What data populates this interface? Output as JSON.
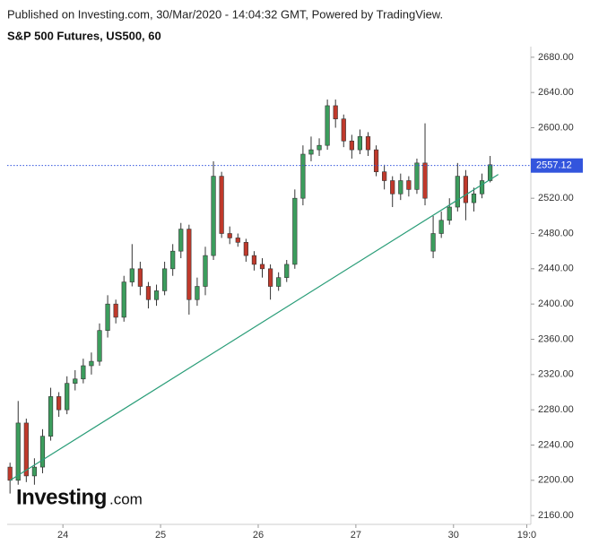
{
  "header": {
    "published": "Published on Investing.com, 30/Mar/2020 - 14:04:32 GMT, Powered by TradingView.",
    "logo": "Investing",
    "logo_suffix": ".com"
  },
  "chart_data": {
    "type": "candlestick",
    "title": "S&P 500 Futures, US500, 60",
    "x": [
      -13,
      -11,
      -9,
      -7,
      -5,
      -3,
      -1,
      1,
      3,
      5,
      7,
      9,
      11,
      13,
      15,
      17,
      19,
      21,
      23,
      25,
      27,
      29,
      31,
      33,
      35,
      37,
      39,
      41,
      43,
      45,
      47,
      49,
      51,
      53,
      55,
      57,
      59,
      61,
      63,
      65,
      67,
      69,
      71,
      73,
      75,
      77,
      79,
      81,
      83,
      85,
      87,
      89,
      91,
      93,
      95,
      97,
      99,
      101,
      103,
      105
    ],
    "open": [
      2215,
      2200,
      2265,
      2205,
      2215,
      2250,
      2295,
      2280,
      2310,
      2315,
      2330,
      2335,
      2370,
      2400,
      2385,
      2425,
      2440,
      2420,
      2405,
      2415,
      2440,
      2460,
      2485,
      2405,
      2420,
      2455,
      2545,
      2480,
      2475,
      2470,
      2455,
      2445,
      2440,
      2420,
      2430,
      2445,
      2520,
      2570,
      2575,
      2580,
      2625,
      2610,
      2585,
      2575,
      2590,
      2575,
      2550,
      2540,
      2525,
      2540,
      2530,
      2560,
      2460,
      2480,
      2495,
      2510,
      2545,
      2515,
      2525,
      2540
    ],
    "high": [
      2220,
      2290,
      2270,
      2225,
      2258,
      2305,
      2300,
      2318,
      2325,
      2338,
      2345,
      2378,
      2410,
      2405,
      2432,
      2468,
      2448,
      2425,
      2422,
      2448,
      2468,
      2492,
      2490,
      2430,
      2465,
      2562,
      2550,
      2488,
      2480,
      2474,
      2460,
      2452,
      2445,
      2436,
      2450,
      2530,
      2580,
      2590,
      2588,
      2632,
      2632,
      2615,
      2592,
      2598,
      2595,
      2580,
      2558,
      2545,
      2548,
      2545,
      2565,
      2605,
      2500,
      2505,
      2520,
      2560,
      2552,
      2532,
      2548,
      2568
    ],
    "low": [
      2185,
      2195,
      2198,
      2195,
      2208,
      2245,
      2272,
      2275,
      2302,
      2310,
      2320,
      2330,
      2362,
      2378,
      2380,
      2420,
      2410,
      2395,
      2398,
      2410,
      2432,
      2452,
      2388,
      2398,
      2410,
      2450,
      2475,
      2468,
      2465,
      2448,
      2438,
      2430,
      2405,
      2415,
      2425,
      2440,
      2512,
      2562,
      2568,
      2575,
      2600,
      2578,
      2565,
      2570,
      2568,
      2545,
      2530,
      2510,
      2518,
      2522,
      2525,
      2512,
      2452,
      2475,
      2490,
      2505,
      2495,
      2505,
      2520,
      2538
    ],
    "close": [
      2200,
      2265,
      2205,
      2215,
      2250,
      2295,
      2280,
      2310,
      2315,
      2330,
      2335,
      2370,
      2400,
      2385,
      2425,
      2440,
      2420,
      2405,
      2415,
      2440,
      2460,
      2485,
      2405,
      2420,
      2455,
      2545,
      2480,
      2475,
      2470,
      2455,
      2445,
      2440,
      2420,
      2430,
      2445,
      2520,
      2570,
      2575,
      2580,
      2625,
      2610,
      2585,
      2575,
      2590,
      2575,
      2550,
      2540,
      2525,
      2540,
      2530,
      2560,
      2520,
      2480,
      2495,
      2510,
      2545,
      2515,
      2525,
      2540,
      2558
    ],
    "up_color": "#3c9d5d",
    "down_color": "#c0392b",
    "trendline": {
      "x": [
        -13,
        107
      ],
      "y": [
        2200,
        2547
      ],
      "color": "#2a9d78"
    },
    "last_price": {
      "value": 2557.12,
      "label": "2557.12",
      "color": "#3355dd"
    },
    "xlim": [
      -13.7,
      115
    ],
    "xticks": [
      {
        "value": 0,
        "label": "24"
      },
      {
        "value": 24,
        "label": "25"
      },
      {
        "value": 48,
        "label": "26"
      },
      {
        "value": 72,
        "label": "27"
      },
      {
        "value": 96,
        "label": "30"
      },
      {
        "value": 114,
        "label": "19:0"
      }
    ],
    "ylim": [
      2150,
      2689
    ],
    "yticks": [
      {
        "value": 2160,
        "label": "2160.00"
      },
      {
        "value": 2200,
        "label": "2200.00"
      },
      {
        "value": 2240,
        "label": "2240.00"
      },
      {
        "value": 2280,
        "label": "2280.00"
      },
      {
        "value": 2320,
        "label": "2320.00"
      },
      {
        "value": 2360,
        "label": "2360.00"
      },
      {
        "value": 2400,
        "label": "2400.00"
      },
      {
        "value": 2440,
        "label": "2440.00"
      },
      {
        "value": 2480,
        "label": "2480.00"
      },
      {
        "value": 2520,
        "label": "2520.00"
      },
      {
        "value": 2560,
        "label": "2560.00"
      },
      {
        "value": 2600,
        "label": "2600.00"
      },
      {
        "value": 2640,
        "label": "2640.00"
      },
      {
        "value": 2680,
        "label": "2680.00"
      }
    ]
  }
}
